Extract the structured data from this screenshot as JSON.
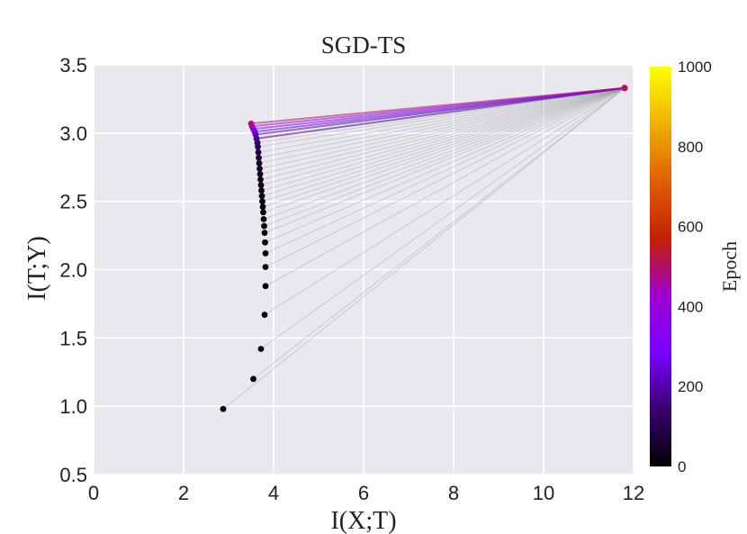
{
  "chart_data": {
    "type": "scatter",
    "title": "SGD-TS",
    "xlabel": "I(X;T)",
    "ylabel": "I(T;Y)",
    "xlim": [
      0,
      12
    ],
    "ylim": [
      0.5,
      3.5
    ],
    "xticks": [
      "0",
      "2",
      "4",
      "6",
      "8",
      "10",
      "12"
    ],
    "yticks": [
      "0.5",
      "1.0",
      "1.5",
      "2.0",
      "2.5",
      "3.0",
      "3.5"
    ],
    "grid": true,
    "colorbar": {
      "label": "Epoch",
      "range": [
        0,
        1000
      ],
      "ticks": [
        "0",
        "200",
        "400",
        "600",
        "800",
        "1000"
      ],
      "colormap": "gnuplot",
      "colors": [
        "#000000",
        "#3a0070",
        "#7b00ff",
        "#a000d0",
        "#c42000",
        "#e06000",
        "#f0b000",
        "#ffff00"
      ]
    },
    "plot_background": "#e8e8ee",
    "grid_color": "#ffffff",
    "output_layer_point": {
      "x": 11.8,
      "y": 3.33,
      "epoch": 500
    },
    "hidden_layer_points": [
      {
        "x": 2.88,
        "y": 0.98,
        "epoch": 0
      },
      {
        "x": 3.55,
        "y": 1.2,
        "epoch": 1
      },
      {
        "x": 3.72,
        "y": 1.42,
        "epoch": 2
      },
      {
        "x": 3.8,
        "y": 1.67,
        "epoch": 3
      },
      {
        "x": 3.82,
        "y": 1.88,
        "epoch": 4
      },
      {
        "x": 3.82,
        "y": 2.02,
        "epoch": 5
      },
      {
        "x": 3.82,
        "y": 2.12,
        "epoch": 6
      },
      {
        "x": 3.81,
        "y": 2.2,
        "epoch": 7
      },
      {
        "x": 3.8,
        "y": 2.27,
        "epoch": 8
      },
      {
        "x": 3.79,
        "y": 2.32,
        "epoch": 9
      },
      {
        "x": 3.78,
        "y": 2.37,
        "epoch": 10
      },
      {
        "x": 3.77,
        "y": 2.42,
        "epoch": 12
      },
      {
        "x": 3.76,
        "y": 2.46,
        "epoch": 14
      },
      {
        "x": 3.75,
        "y": 2.5,
        "epoch": 16
      },
      {
        "x": 3.74,
        "y": 2.54,
        "epoch": 19
      },
      {
        "x": 3.73,
        "y": 2.58,
        "epoch": 22
      },
      {
        "x": 3.72,
        "y": 2.62,
        "epoch": 26
      },
      {
        "x": 3.71,
        "y": 2.66,
        "epoch": 31
      },
      {
        "x": 3.7,
        "y": 2.7,
        "epoch": 37
      },
      {
        "x": 3.69,
        "y": 2.74,
        "epoch": 45
      },
      {
        "x": 3.68,
        "y": 2.78,
        "epoch": 55
      },
      {
        "x": 3.67,
        "y": 2.82,
        "epoch": 68
      },
      {
        "x": 3.66,
        "y": 2.86,
        "epoch": 85
      },
      {
        "x": 3.65,
        "y": 2.9,
        "epoch": 105
      },
      {
        "x": 3.64,
        "y": 2.93,
        "epoch": 130
      },
      {
        "x": 3.62,
        "y": 2.96,
        "epoch": 160
      },
      {
        "x": 3.6,
        "y": 2.99,
        "epoch": 200
      },
      {
        "x": 3.58,
        "y": 3.01,
        "epoch": 250
      },
      {
        "x": 3.55,
        "y": 3.03,
        "epoch": 320
      },
      {
        "x": 3.52,
        "y": 3.05,
        "epoch": 400
      },
      {
        "x": 3.5,
        "y": 3.07,
        "epoch": 500
      }
    ]
  }
}
